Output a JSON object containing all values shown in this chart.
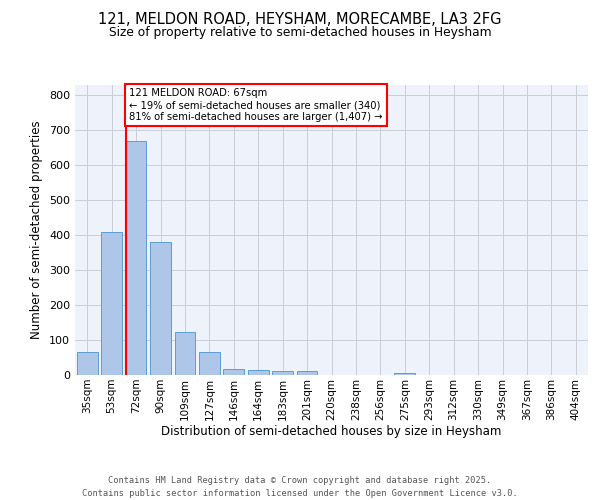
{
  "title1": "121, MELDON ROAD, HEYSHAM, MORECAMBE, LA3 2FG",
  "title2": "Size of property relative to semi-detached houses in Heysham",
  "xlabel": "Distribution of semi-detached houses by size in Heysham",
  "ylabel": "Number of semi-detached properties",
  "categories": [
    "35sqm",
    "53sqm",
    "72sqm",
    "90sqm",
    "109sqm",
    "127sqm",
    "146sqm",
    "164sqm",
    "183sqm",
    "201sqm",
    "220sqm",
    "238sqm",
    "256sqm",
    "275sqm",
    "293sqm",
    "312sqm",
    "330sqm",
    "349sqm",
    "367sqm",
    "386sqm",
    "404sqm"
  ],
  "values": [
    65,
    410,
    670,
    380,
    122,
    65,
    18,
    15,
    12,
    12,
    0,
    0,
    0,
    5,
    0,
    0,
    0,
    0,
    0,
    0,
    0
  ],
  "bar_color": "#aec6e8",
  "bar_edge_color": "#5a9fd4",
  "vline_x_index": 2,
  "annotation_text": "121 MELDON ROAD: 67sqm\n← 19% of semi-detached houses are smaller (340)\n81% of semi-detached houses are larger (1,407) →",
  "annotation_box_color": "white",
  "annotation_border_color": "red",
  "vline_color": "red",
  "ylim": [
    0,
    830
  ],
  "yticks": [
    0,
    100,
    200,
    300,
    400,
    500,
    600,
    700,
    800
  ],
  "footer_line1": "Contains HM Land Registry data © Crown copyright and database right 2025.",
  "footer_line2": "Contains public sector information licensed under the Open Government Licence v3.0.",
  "bg_color": "#eef2fb",
  "grid_color": "#c8cdd8"
}
